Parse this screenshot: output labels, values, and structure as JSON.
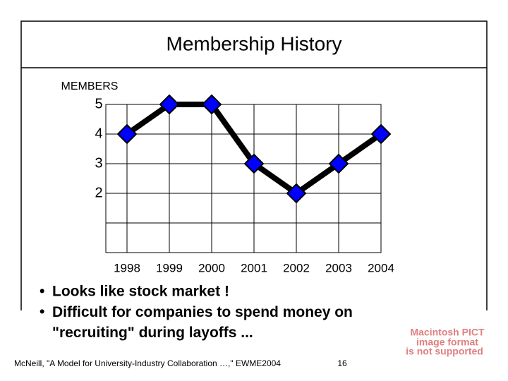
{
  "chart_data": {
    "type": "line",
    "title": "Membership History",
    "y_label": "MEMBERS",
    "x": [
      1998,
      1999,
      2000,
      2001,
      2002,
      2003,
      2004
    ],
    "series": [
      {
        "name": "Members",
        "color": "#0000ff",
        "values": [
          4,
          5,
          5,
          3,
          2,
          3,
          4
        ]
      }
    ],
    "xlim": [
      1997.5,
      2004
    ],
    "xticks": [
      1998,
      1999,
      2000,
      2001,
      2002,
      2003,
      2004
    ],
    "ylim": [
      0,
      5
    ],
    "yticks": [
      2,
      3,
      4,
      5
    ],
    "ygrid": [
      1,
      2,
      3,
      4,
      5
    ],
    "grid": true
  },
  "bullets": [
    "Looks like stock market !",
    "Difficult for companies to spend money on \"recruiting\" during layoffs ..."
  ],
  "footer": {
    "citation": "McNeill, \"A Model for University-Industry Collaboration …,\" EWME2004",
    "page": "16"
  },
  "image_placeholder": [
    "Macintosh PICT",
    "image format",
    "is not supported"
  ]
}
